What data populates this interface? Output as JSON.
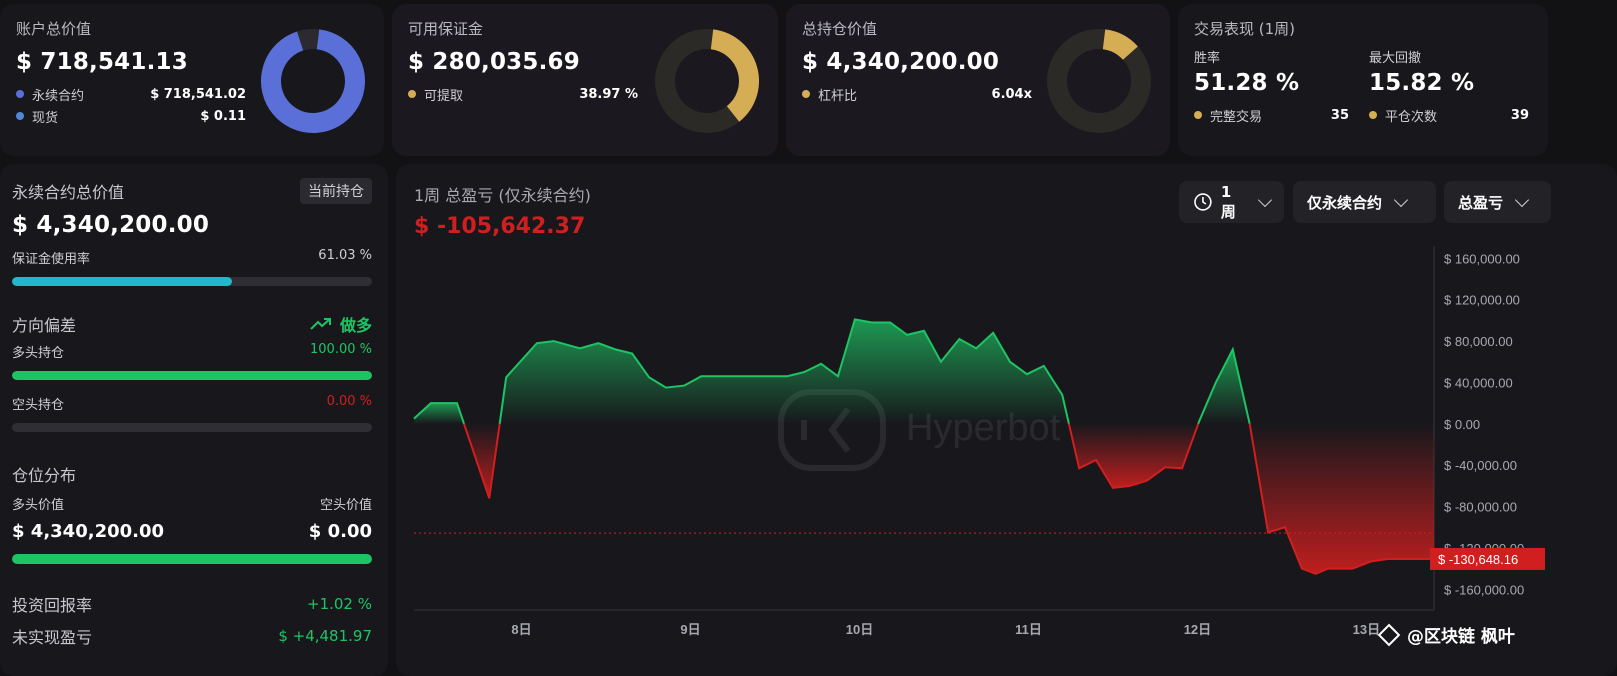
{
  "top_cards": [
    {
      "title": "账户总价值",
      "value": "$ 718,541.13",
      "rows": [
        {
          "label": "永续合约",
          "value": "$ 718,541.02",
          "color": "#5b6fd8"
        },
        {
          "label": "现货",
          "value": "$ 0.11",
          "color": "#4f86d9"
        }
      ],
      "donut_color": "#5b6fd8",
      "donut_fraction": 0.97
    },
    {
      "title": "可用保证金",
      "value": "$ 280,035.69",
      "rows": [
        {
          "label": "可提取",
          "value": "38.97 %",
          "color": "#d4ad55"
        }
      ],
      "donut_color": "#d4ad55",
      "donut_fraction": 0.39
    },
    {
      "title": "总持仓价值",
      "value": "$ 4,340,200.00",
      "rows": [
        {
          "label": "杠杆比",
          "value": "6.04x",
          "color": "#d4ad55"
        }
      ],
      "donut_color": "#d4ad55",
      "donut_fraction": 0.12
    }
  ],
  "performance": {
    "title": "交易表现 (1周)",
    "win_rate_label": "胜率",
    "win_rate": "51.28 %",
    "max_dd_label": "最大回撤",
    "max_dd": "15.82 %",
    "trades_label": "完整交易",
    "trades": "35",
    "closes_label": "平仓次数",
    "closes": "39",
    "dot_color": "#d4ad55"
  },
  "left": {
    "perp_title": "永续合约总价值",
    "current_tag": "当前持仓",
    "perp_value": "$ 4,340,200.00",
    "margin_label": "保证金使用率",
    "margin_value": "61.03 %",
    "margin_fraction": 0.6103,
    "bias_title": "方向偏差",
    "bias_value": "做多",
    "long_label": "多头持仓",
    "long_value": "100.00 %",
    "long_fraction": 1.0,
    "short_label": "空头持仓",
    "short_value": "0.00 %",
    "short_fraction": 0.0,
    "dist_title": "仓位分布",
    "long_val_label": "多头价值",
    "short_val_label": "空头价值",
    "long_val": "$ 4,340,200.00",
    "short_val": "$ 0.00",
    "roi_label": "投资回报率",
    "roi_value": "+1.02 %",
    "upnl_label": "未实现盈亏",
    "upnl_value": "$ +4,481.97"
  },
  "chart_panel": {
    "title": "1周 总盈亏 (仅永续合约)",
    "total": "$ -105,642.37",
    "dropdowns": {
      "period": "1周",
      "scope": "仅永续合约",
      "metric": "总盈亏"
    },
    "watermark": "Hyperbot",
    "footer_mark": "@区块链 枫叶",
    "current_label": "$ -130,648.16"
  },
  "chart_data": {
    "type": "area",
    "x_ticks": [
      "8日",
      "9日",
      "10日",
      "11日",
      "12日",
      "13日"
    ],
    "y_ticks": [
      "$ 160,000.00",
      "$ 120,000.00",
      "$ 80,000.00",
      "$ 40,000.00",
      "$ 0.00",
      "$ -40,000.00",
      "$ -80,000.00",
      "$ -120,000.00",
      "$ -160,000.00"
    ],
    "ylim": [
      -180000,
      170000
    ],
    "x": [
      0,
      0.11,
      0.28,
      0.49,
      0.6,
      0.8,
      0.91,
      1.08,
      1.2,
      1.31,
      1.42,
      1.53,
      1.64,
      1.76,
      1.87,
      1.98,
      2.21,
      2.32,
      2.43,
      2.54,
      2.65,
      2.76,
      2.87,
      2.98,
      3.1,
      3.21,
      3.32,
      3.43,
      3.55,
      3.66,
      3.77,
      3.88,
      3.99,
      4.1,
      4.22,
      4.33,
      4.44,
      4.55,
      4.66,
      4.77,
      4.89,
      5.0,
      5.11,
      5.22,
      5.33,
      5.44,
      5.56,
      5.67,
      5.78,
      5.87,
      5.95,
      6.11,
      6.23,
      6.34,
      6.45,
      6.56,
      6.64
    ],
    "y": [
      5000,
      20000,
      20000,
      -72000,
      45000,
      78000,
      80000,
      73000,
      78000,
      72000,
      68000,
      45000,
      35000,
      37000,
      46000,
      46000,
      46000,
      46000,
      46000,
      50000,
      58000,
      46000,
      101000,
      98000,
      98000,
      86000,
      90000,
      60000,
      82000,
      73000,
      88000,
      60000,
      48000,
      56000,
      28000,
      -43000,
      -35000,
      -62000,
      -60000,
      -55000,
      -42000,
      -43000,
      2000,
      40000,
      72000,
      0,
      -105000,
      -100000,
      -140000,
      -145000,
      -140000,
      -140000,
      -133000,
      -130648,
      -130648,
      -130648,
      -130648
    ],
    "x_tick_positions": [
      0.7,
      1.8,
      2.9,
      4.0,
      5.1,
      6.2
    ],
    "reference_line": -105642,
    "positive_color": "#1ec464",
    "negative_color": "#d11f1f"
  }
}
